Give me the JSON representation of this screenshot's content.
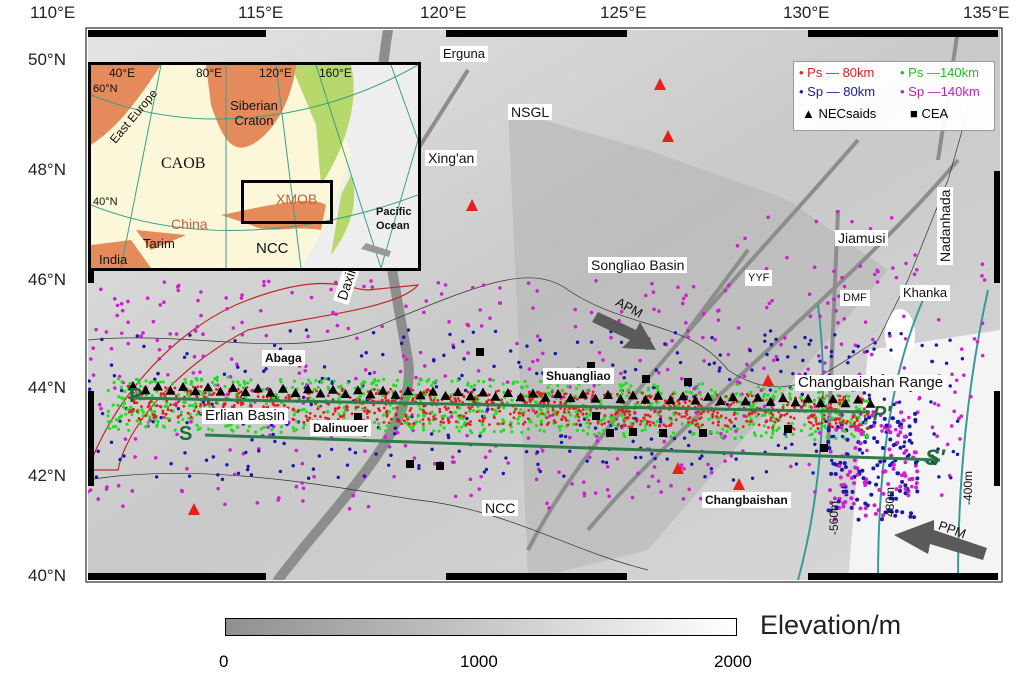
{
  "axes": {
    "lon_ticks": [
      "110°E",
      "115°E",
      "120°E",
      "125°E",
      "130°E",
      "135°E"
    ],
    "lat_ticks": [
      "50°N",
      "48°N",
      "46°N",
      "44°N",
      "42°N",
      "40°N"
    ]
  },
  "map_labels": {
    "erguna": "Erguna",
    "nsgl": "NSGL",
    "xingan": "Xing'an",
    "daxinganling": "Daxinganling Range",
    "songliao": "Songliao Basin",
    "jiamusi": "Jiamusi",
    "nadanhada": "Nadanhada",
    "yyf": "YYF",
    "dmf": "DMF",
    "khanka": "Khanka",
    "apm": "APM",
    "abaga": "Abaga",
    "shuangliao": "Shuangliao",
    "changbaishan_range": "Changbaishan Range",
    "erlian": "Erlian Basin",
    "dalinuoer": "Dalinuoer",
    "ncc": "NCC",
    "changbaishan": "Changbaishan",
    "ppm": "PPM",
    "p": "P",
    "p_prime": "P′",
    "s": "S",
    "s_prime": "S′",
    "contour_560": "-560m",
    "contour_480": "480m",
    "contour_400": "-400m"
  },
  "legend": {
    "ps80": "Ps — 80km",
    "ps140": "Ps —140km",
    "sp80": "Sp — 80km",
    "sp140": "Sp —140km",
    "necsaids": "NECsaids",
    "cea": "CEA",
    "colors": {
      "ps80": "#e0201c",
      "ps140": "#22dd22",
      "sp80": "#1a1aaa",
      "sp140": "#d020d0"
    }
  },
  "inset": {
    "lon_labels": [
      "40°E",
      "80°E",
      "120°E",
      "160°E"
    ],
    "lat_labels": [
      "60°N",
      "40°N"
    ],
    "regions": {
      "east_europe": "East Europe",
      "siberian": "Siberian Craton",
      "caob": "CAOB",
      "xmob": "XMOB",
      "china": "China",
      "tarim": "Tarim",
      "ncc": "NCC",
      "india": "India",
      "pacific": "Pacific Ocean"
    }
  },
  "colorbar": {
    "title": "Elevation/m",
    "ticks": [
      "0",
      "1000",
      "2000"
    ],
    "range": [
      0,
      2000
    ]
  }
}
